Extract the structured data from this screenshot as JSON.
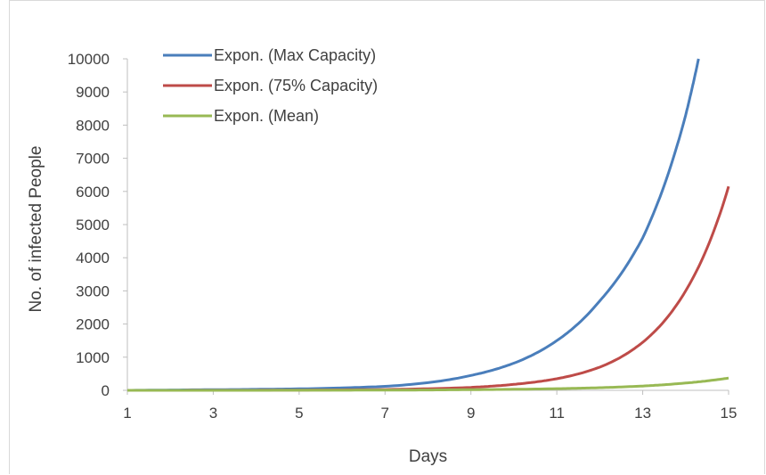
{
  "chart_data": {
    "type": "line",
    "title": "",
    "xlabel": "Days",
    "ylabel": "No. of infected People",
    "xlim": [
      1,
      15
    ],
    "ylim": [
      0,
      10000
    ],
    "x_ticks": [
      "1",
      "3",
      "5",
      "7",
      "9",
      "11",
      "13",
      "15"
    ],
    "y_ticks": [
      "0",
      "1000",
      "2000",
      "3000",
      "4000",
      "5000",
      "6000",
      "7000",
      "8000",
      "9000",
      "10000"
    ],
    "grid": false,
    "legend_position": "top-left",
    "series": [
      {
        "name": "Expon. (Max Capacity)",
        "color": "#4a7ebb",
        "x": [
          1,
          3,
          5,
          7,
          9,
          10,
          11,
          12,
          13,
          14,
          14.3
        ],
        "y": [
          0,
          20,
          45,
          120,
          450,
          820,
          1500,
          2700,
          4600,
          8300,
          10000
        ]
      },
      {
        "name": "Expon. (75% Capacity)",
        "color": "#be4b48",
        "x": [
          1,
          3,
          5,
          7,
          9,
          10,
          11,
          12,
          13,
          14,
          15
        ],
        "y": [
          0,
          2,
          8,
          25,
          90,
          180,
          350,
          700,
          1450,
          3000,
          6150
        ]
      },
      {
        "name": "Expon. (Mean)",
        "color": "#98b954",
        "x": [
          1,
          3,
          5,
          7,
          9,
          11,
          12,
          13,
          14,
          15
        ],
        "y": [
          0,
          0,
          2,
          6,
          20,
          50,
          80,
          130,
          220,
          370
        ]
      }
    ]
  }
}
